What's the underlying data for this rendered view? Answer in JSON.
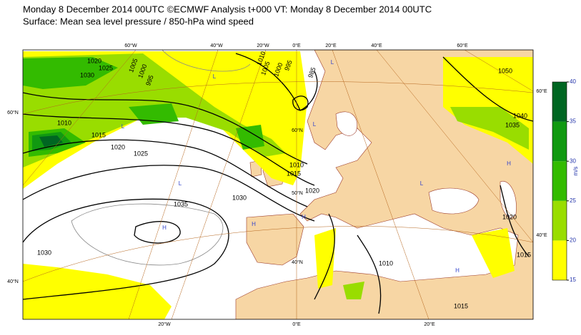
{
  "header": {
    "title": "Monday 8 December 2014 00UTC ©ECMWF Analysis t+000 VT: Monday 8 December 2014 00UTC",
    "subtitle": "Surface: Mean sea level pressure / 850-hPa wind speed"
  },
  "map": {
    "top_labels": [
      "60°W",
      "40°W",
      "20°W",
      "0°E",
      "20°E",
      "40°E",
      "60°E"
    ],
    "left_labels": [
      "60°N",
      "40°N"
    ],
    "right_labels": [
      "60°E",
      "40°E"
    ],
    "bottom_labels": [
      "20°W",
      "0°E",
      "20°E"
    ],
    "inner_labels": [
      "60°N",
      "50°N",
      "40°N"
    ],
    "isobar_labels": [
      "1010",
      "1015",
      "1020",
      "1025",
      "1035",
      "1030",
      "1030",
      "1040",
      "1035",
      "1050",
      "1020",
      "1015",
      "1015",
      "1010",
      "1015",
      "1010",
      "1020",
      "1005",
      "1000",
      "995",
      "1010",
      "1005",
      "1000",
      "995",
      "985",
      "1020",
      "1025",
      "1030"
    ],
    "pressure_centres": [
      "L",
      "H",
      "L",
      "H",
      "L",
      "H",
      "L",
      "H",
      "L",
      "L",
      "H"
    ]
  },
  "legend": {
    "unit": "m/s",
    "ticks": [
      15,
      20,
      25,
      30,
      35,
      40
    ],
    "colors": [
      "#ffff00",
      "#99dd00",
      "#33bb00",
      "#119911",
      "#006622"
    ]
  }
}
